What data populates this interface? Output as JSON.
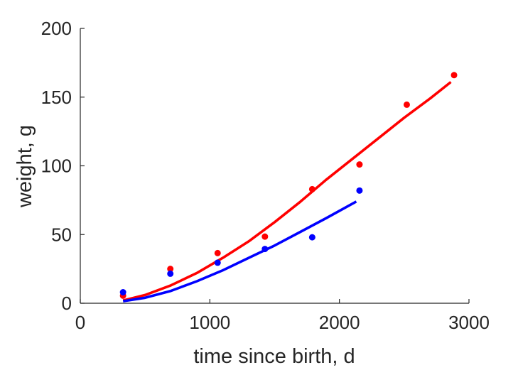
{
  "chart_data": {
    "type": "scatter",
    "title": "",
    "xlabel": "time since birth, d",
    "ylabel": "weight, g",
    "xlim": [
      0,
      3000
    ],
    "ylim": [
      0,
      200
    ],
    "xticks": [
      0,
      1000,
      2000,
      3000
    ],
    "yticks": [
      0,
      50,
      100,
      150,
      200
    ],
    "grid": false,
    "legend": "none",
    "series": [
      {
        "color": "#ff0000",
        "points": {
          "x": [
            330,
            695,
            1060,
            1425,
            1790,
            2155,
            2520,
            2885
          ],
          "y": [
            5.5,
            25,
            36.5,
            48.5,
            83,
            101,
            144.5,
            166
          ]
        },
        "fit": {
          "x": [
            330,
            500,
            700,
            900,
            1100,
            1300,
            1500,
            1700,
            1900,
            2100,
            2300,
            2500,
            2700,
            2860
          ],
          "y": [
            2,
            6,
            13,
            22,
            33,
            45,
            59,
            74,
            90,
            105,
            120,
            135,
            149,
            161
          ]
        }
      },
      {
        "color": "#0000ff",
        "points": {
          "x": [
            330,
            695,
            1060,
            1425,
            1790,
            2155
          ],
          "y": [
            8,
            21.5,
            29.5,
            39.5,
            48,
            82
          ]
        },
        "fit": {
          "x": [
            330,
            500,
            700,
            900,
            1100,
            1300,
            1500,
            1700,
            1900,
            2130
          ],
          "y": [
            1.5,
            4,
            9,
            16,
            24,
            33,
            42,
            52,
            62,
            74
          ]
        }
      }
    ]
  }
}
